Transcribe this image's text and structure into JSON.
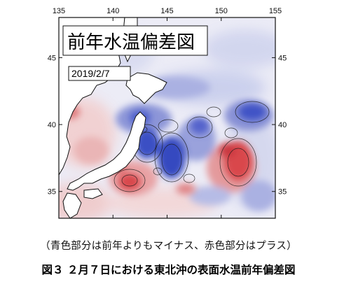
{
  "map": {
    "title": "前年水温偏差図",
    "date": "2019/2/7",
    "lon_ticks": [
      "135",
      "140",
      "145",
      "150",
      "155"
    ],
    "lat_ticks": [
      "45",
      "40",
      "35"
    ],
    "extent": {
      "lon": [
        135,
        155
      ],
      "lat": [
        33,
        48
      ]
    },
    "legend_note": "（青色部分は前年よりもマイナス、赤色部分はプラス）",
    "colors": {
      "negative": "#3a4fc4",
      "positive": "#d9474c",
      "land": "#ffffff",
      "neutral": "#e8e8f4"
    }
  },
  "caption": "図３ ２月７日における東北沖の表面水温前年偏差図"
}
